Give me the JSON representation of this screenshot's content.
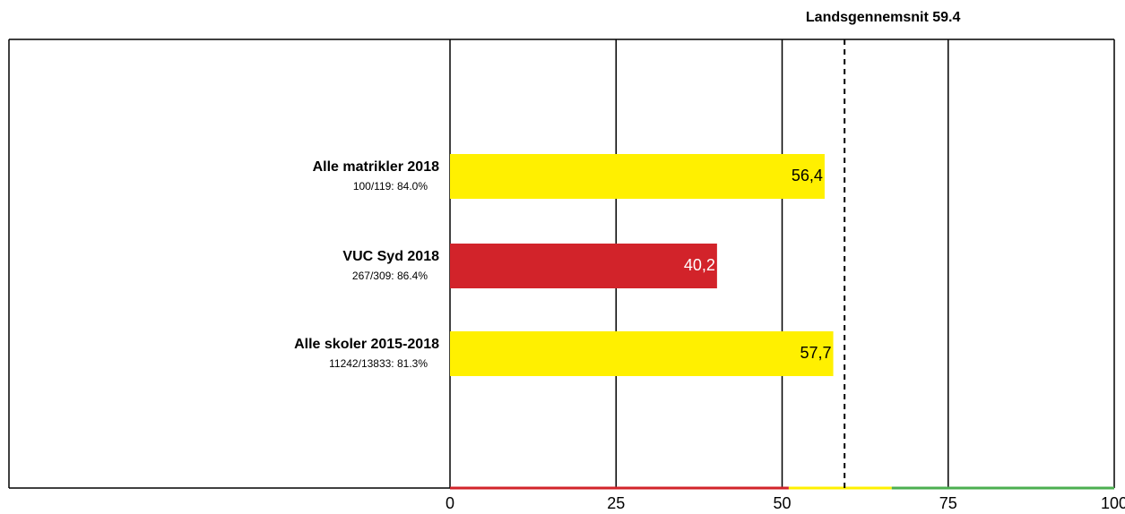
{
  "chart_data": {
    "type": "hbar",
    "categories": [
      "Alle matrikler 2018",
      "VUC Syd 2018",
      "Alle skoler 2015-2018"
    ],
    "sublabels": [
      "100/119: 84.0%",
      "267/309: 86.4%",
      "11242/13833: 81.3%"
    ],
    "values": [
      56.4,
      40.2,
      57.7
    ],
    "value_labels": [
      "56,4",
      "40,2",
      "57,7"
    ],
    "colors": [
      "#fff000",
      "#d2232a",
      "#fff000"
    ],
    "label_colors": [
      "#000000",
      "#ffffff",
      "#000000"
    ],
    "xlim": [
      0,
      100
    ],
    "xticks": [
      0,
      25,
      50,
      75,
      100
    ],
    "grid": true,
    "reference_line": {
      "value": 59.4,
      "label": "Landsgennemsnit 59.4"
    },
    "bands": [
      {
        "from": 0,
        "to": 51,
        "color": "#d2232a"
      },
      {
        "from": 51,
        "to": 66.5,
        "color": "#fff000"
      },
      {
        "from": 66.5,
        "to": 100,
        "color": "#4caf50"
      }
    ]
  }
}
